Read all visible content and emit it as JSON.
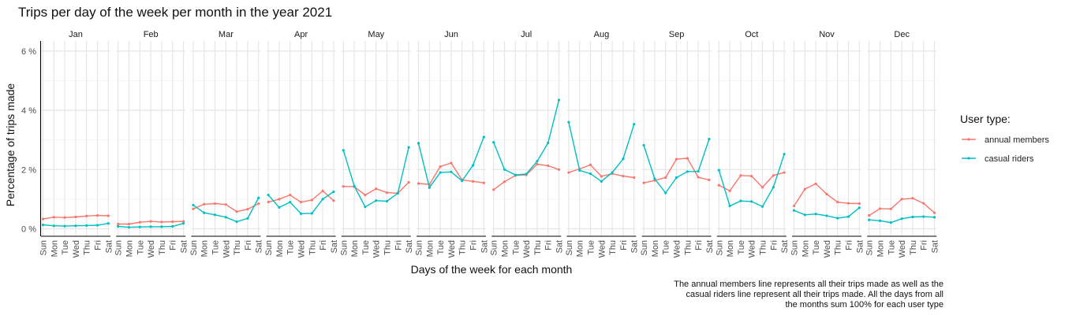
{
  "chart_data": {
    "type": "line",
    "title": "Trips per day of the week per month in the year 2021",
    "xlabel": "Days of the week for each month",
    "ylabel": "Percentage of trips made",
    "ylim": [
      0,
      6.2
    ],
    "y_ticks": [
      "0 %",
      "2 %",
      "4 %",
      "6 %"
    ],
    "y_tick_values": [
      0,
      2,
      4,
      6
    ],
    "grid": true,
    "legend_title": "User type:",
    "legend_position": "right",
    "days": [
      "Sun",
      "Mon",
      "Tue",
      "Wed",
      "Thu",
      "Fri",
      "Sat"
    ],
    "series": [
      {
        "name": "annual members",
        "color": "#F8766D"
      },
      {
        "name": "casual riders",
        "color": "#00BFC4"
      }
    ],
    "facets": [
      {
        "month": "Jan",
        "annual": [
          0.33,
          0.39,
          0.38,
          0.4,
          0.43,
          0.45,
          0.44
        ],
        "casual": [
          0.13,
          0.1,
          0.09,
          0.1,
          0.11,
          0.12,
          0.18
        ]
      },
      {
        "month": "Feb",
        "annual": [
          0.16,
          0.16,
          0.22,
          0.25,
          0.23,
          0.24,
          0.25
        ],
        "casual": [
          0.08,
          0.05,
          0.06,
          0.07,
          0.07,
          0.08,
          0.18
        ]
      },
      {
        "month": "Mar",
        "annual": [
          0.67,
          0.83,
          0.85,
          0.82,
          0.58,
          0.66,
          0.85
        ],
        "casual": [
          0.8,
          0.54,
          0.47,
          0.39,
          0.24,
          0.35,
          1.04
        ]
      },
      {
        "month": "Apr",
        "annual": [
          0.9,
          1.0,
          1.14,
          0.9,
          0.97,
          1.28,
          0.95
        ],
        "casual": [
          1.14,
          0.72,
          0.9,
          0.51,
          0.52,
          1.0,
          1.25
        ]
      },
      {
        "month": "May",
        "annual": [
          1.43,
          1.42,
          1.14,
          1.35,
          1.22,
          1.2,
          1.57
        ],
        "casual": [
          2.65,
          1.44,
          0.74,
          0.95,
          0.93,
          1.2,
          2.75
        ]
      },
      {
        "month": "Jun",
        "annual": [
          1.53,
          1.5,
          2.1,
          2.22,
          1.65,
          1.6,
          1.55
        ],
        "casual": [
          2.89,
          1.39,
          1.9,
          1.92,
          1.62,
          2.14,
          3.1
        ]
      },
      {
        "month": "Jul",
        "annual": [
          1.32,
          1.59,
          1.8,
          1.82,
          2.18,
          2.13,
          2.0
        ],
        "casual": [
          2.92,
          2.0,
          1.82,
          1.85,
          2.28,
          2.9,
          4.35
        ]
      },
      {
        "month": "Aug",
        "annual": [
          1.9,
          2.02,
          2.16,
          1.77,
          1.86,
          1.78,
          1.73
        ],
        "casual": [
          3.6,
          1.97,
          1.86,
          1.6,
          1.9,
          2.36,
          3.53
        ]
      },
      {
        "month": "Sep",
        "annual": [
          1.55,
          1.63,
          1.73,
          2.35,
          2.38,
          1.74,
          1.65
        ],
        "casual": [
          2.82,
          1.69,
          1.21,
          1.73,
          1.93,
          1.94,
          3.03
        ]
      },
      {
        "month": "Oct",
        "annual": [
          1.47,
          1.28,
          1.8,
          1.78,
          1.4,
          1.8,
          1.9
        ],
        "casual": [
          1.98,
          0.77,
          0.94,
          0.92,
          0.75,
          1.4,
          2.52
        ]
      },
      {
        "month": "Nov",
        "annual": [
          0.77,
          1.34,
          1.52,
          1.17,
          0.9,
          0.86,
          0.85
        ],
        "casual": [
          0.62,
          0.47,
          0.5,
          0.44,
          0.36,
          0.41,
          0.71
        ]
      },
      {
        "month": "Dec",
        "annual": [
          0.45,
          0.68,
          0.67,
          1.0,
          1.03,
          0.86,
          0.54
        ],
        "casual": [
          0.3,
          0.27,
          0.21,
          0.34,
          0.4,
          0.41,
          0.39
        ]
      }
    ],
    "caption": [
      "The annual members line represents all their trips made as well as the",
      "casual riders line represent all their trips made. All the days from all",
      "the months sum 100% for each user type"
    ]
  }
}
